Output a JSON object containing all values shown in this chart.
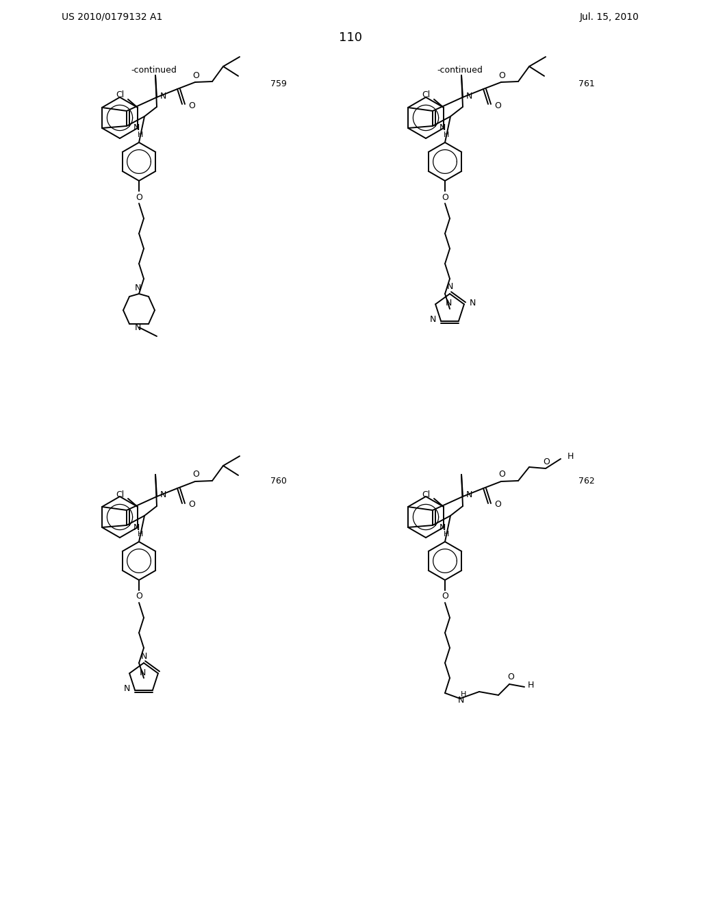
{
  "page_header_left": "US 2010/0179132 A1",
  "page_header_right": "Jul. 15, 2010",
  "page_number": "110",
  "background_color": "#ffffff",
  "compounds": [
    "759",
    "760",
    "761",
    "762"
  ],
  "continued_text": "-continued"
}
